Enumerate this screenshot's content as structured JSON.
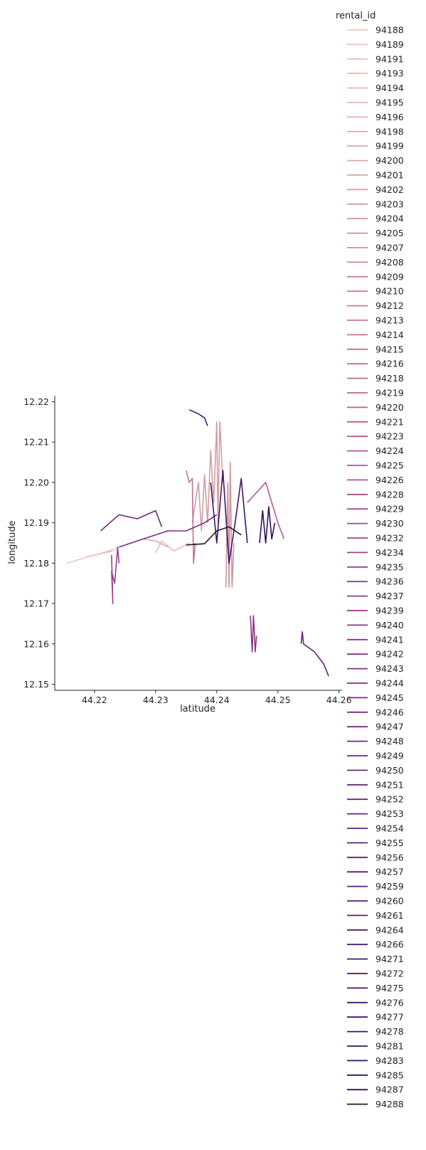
{
  "chart_data": {
    "type": "line",
    "xlabel": "latitude",
    "ylabel": "longitude",
    "xlim": [
      44.2135,
      44.2605
    ],
    "ylim": [
      12.1485,
      12.2215
    ],
    "xticks": [
      "44.22",
      "44.23",
      "44.24",
      "44.25",
      "44.26"
    ],
    "yticks": [
      "12.15",
      "12.16",
      "12.17",
      "12.18",
      "12.19",
      "12.20",
      "12.21",
      "12.22"
    ],
    "grid": false,
    "legend": {
      "title": "rental_id",
      "placement": "right"
    },
    "palette": {
      "light": "#ebc9c0",
      "mid": "#c07ba0",
      "dark": "#2d1f40"
    },
    "series": [
      {
        "name": "94188",
        "color": "#ebc9c0",
        "x": [
          44.2155,
          44.22,
          44.224
        ],
        "y": [
          12.18,
          12.182,
          12.1838
        ]
      },
      {
        "name": "94189",
        "color": "#e9c5bd",
        "x": [
          44.2185,
          44.2215,
          44.223
        ],
        "y": [
          12.1815,
          12.1825,
          12.183
        ]
      },
      {
        "name": "94191",
        "color": "#e7c1ba"
      },
      {
        "name": "94193",
        "color": "#e5bdb7",
        "x": [
          44.23,
          44.231,
          44.233,
          44.2355
        ],
        "y": [
          12.1825,
          12.1855,
          12.183,
          12.185
        ]
      },
      {
        "name": "94194",
        "color": "#e3b9b4"
      },
      {
        "name": "94195",
        "color": "#e1b5b1"
      },
      {
        "name": "94196",
        "color": "#dfb1ae"
      },
      {
        "name": "94198",
        "color": "#ddadab",
        "x": [
          44.228,
          44.23,
          44.232
        ],
        "y": [
          12.186,
          12.1855,
          12.184
        ]
      },
      {
        "name": "94199",
        "color": "#dba9a8"
      },
      {
        "name": "94200",
        "color": "#d9a5a6"
      },
      {
        "name": "94201",
        "color": "#d7a1a4"
      },
      {
        "name": "94202",
        "color": "#d59da2",
        "x": [
          44.236,
          44.2365,
          44.237,
          44.2375,
          44.238,
          44.2385,
          44.239,
          44.2395,
          44.24,
          44.2402,
          44.2405,
          44.241
        ],
        "y": [
          12.19,
          12.195,
          12.2,
          12.188,
          12.202,
          12.19,
          12.208,
          12.195,
          12.215,
          12.19,
          12.215,
          12.2
        ]
      },
      {
        "name": "94203",
        "color": "#d399a0"
      },
      {
        "name": "94204",
        "color": "#d1959e",
        "x": [
          44.2415,
          44.2418,
          44.242,
          44.2422,
          44.2425,
          44.2428
        ],
        "y": [
          12.174,
          12.2,
          12.174,
          12.205,
          12.174,
          12.185
        ]
      },
      {
        "name": "94205",
        "color": "#cf919c"
      },
      {
        "name": "94207",
        "color": "#cd8d9b"
      },
      {
        "name": "94208",
        "color": "#cb899a"
      },
      {
        "name": "94209",
        "color": "#c98599"
      },
      {
        "name": "94210",
        "color": "#c78198"
      },
      {
        "name": "94212",
        "color": "#c57d97"
      },
      {
        "name": "94213",
        "color": "#c37996"
      },
      {
        "name": "94214",
        "color": "#c17595"
      },
      {
        "name": "94215",
        "color": "#bf7194",
        "x": [
          44.235,
          44.2355,
          44.236,
          44.2362,
          44.2365
        ],
        "y": [
          12.203,
          12.2,
          12.201,
          12.18,
          12.185
        ]
      },
      {
        "name": "94216",
        "color": "#bd6d93"
      },
      {
        "name": "94218",
        "color": "#bb6993"
      },
      {
        "name": "94219",
        "color": "#b96593"
      },
      {
        "name": "94220",
        "color": "#b76193"
      },
      {
        "name": "94221",
        "color": "#b55d93",
        "x": [
          44.245,
          44.248,
          44.25,
          44.251
        ],
        "y": [
          12.195,
          12.2,
          12.19,
          12.186
        ]
      },
      {
        "name": "94223",
        "color": "#b35a93"
      },
      {
        "name": "94224",
        "color": "#b05792"
      },
      {
        "name": "94225",
        "color": "#ad5491"
      },
      {
        "name": "94226",
        "color": "#aa5190"
      },
      {
        "name": "94228",
        "color": "#a74e8f"
      },
      {
        "name": "94229",
        "color": "#a44b8e"
      },
      {
        "name": "94230",
        "color": "#a1488d"
      },
      {
        "name": "94232",
        "color": "#9e458c"
      },
      {
        "name": "94234",
        "color": "#9b428b"
      },
      {
        "name": "94235",
        "color": "#983f8a",
        "x": [
          44.2228,
          44.223,
          44.2228,
          44.2233,
          44.2238,
          44.224
        ],
        "y": [
          12.182,
          12.17,
          12.178,
          12.175,
          12.184,
          12.18
        ]
      },
      {
        "name": "94236",
        "color": "#953c89"
      },
      {
        "name": "94237",
        "color": "#923988"
      },
      {
        "name": "94239",
        "color": "#8f3787"
      },
      {
        "name": "94240",
        "color": "#8c3586",
        "x": [
          44.2455,
          44.2458,
          44.246,
          44.2463,
          44.2465
        ],
        "y": [
          12.167,
          12.158,
          12.167,
          12.158,
          12.162
        ]
      },
      {
        "name": "94241",
        "color": "#893385"
      },
      {
        "name": "94242",
        "color": "#863184"
      },
      {
        "name": "94243",
        "color": "#832f83"
      },
      {
        "name": "94244",
        "color": "#802d82"
      },
      {
        "name": "94245",
        "color": "#7d2b81",
        "x": [
          44.224,
          44.228,
          44.232,
          44.235,
          44.238,
          44.24
        ],
        "y": [
          12.184,
          12.186,
          12.188,
          12.188,
          12.19,
          12.192
        ]
      },
      {
        "name": "94246",
        "color": "#7a2a80"
      },
      {
        "name": "94247",
        "color": "#77297f"
      },
      {
        "name": "94248",
        "color": "#74287e",
        "x": [
          44.221,
          44.224,
          44.227,
          44.23,
          44.231
        ],
        "y": [
          12.188,
          12.192,
          12.191,
          12.193,
          12.189
        ]
      },
      {
        "name": "94249",
        "color": "#71277d"
      },
      {
        "name": "94250",
        "color": "#6e267c"
      },
      {
        "name": "94251",
        "color": "#6b257b"
      },
      {
        "name": "94252",
        "color": "#68247a"
      },
      {
        "name": "94253",
        "color": "#652379"
      },
      {
        "name": "94254",
        "color": "#622278",
        "x": [
          44.2538,
          44.254,
          44.2542,
          44.256,
          44.2575,
          44.2583
        ],
        "y": [
          12.16,
          12.163,
          12.16,
          12.158,
          12.155,
          12.152
        ]
      },
      {
        "name": "94255",
        "color": "#5f2177"
      },
      {
        "name": "94256",
        "color": "#5c2076"
      },
      {
        "name": "94257",
        "color": "#591f75"
      },
      {
        "name": "94259",
        "color": "#561e74"
      },
      {
        "name": "94260",
        "color": "#531d73"
      },
      {
        "name": "94261",
        "color": "#501c72"
      },
      {
        "name": "94264",
        "color": "#4d1b71"
      },
      {
        "name": "94266",
        "color": "#4a1a6f"
      },
      {
        "name": "94271",
        "color": "#47196d",
        "x": [
          44.2355,
          44.237,
          44.238,
          44.2385
        ],
        "y": [
          12.218,
          12.217,
          12.216,
          12.214
        ]
      },
      {
        "name": "94272",
        "color": "#44186b"
      },
      {
        "name": "94275",
        "color": "#411769"
      },
      {
        "name": "94276",
        "color": "#3e1667",
        "x": [
          44.239,
          44.24,
          44.241,
          44.242,
          44.243,
          44.244,
          44.245
        ],
        "y": [
          12.2,
          12.185,
          12.203,
          12.18,
          12.19,
          12.201,
          12.185
        ]
      },
      {
        "name": "94277",
        "color": "#3b1565"
      },
      {
        "name": "94278",
        "color": "#381463"
      },
      {
        "name": "94281",
        "color": "#351361"
      },
      {
        "name": "94283",
        "color": "#32125f"
      },
      {
        "name": "94285",
        "color": "#2f115d"
      },
      {
        "name": "94287",
        "color": "#2c105b",
        "x": [
          44.247,
          44.2475,
          44.248,
          44.2485,
          44.249,
          44.2495
        ],
        "y": [
          12.185,
          12.193,
          12.185,
          12.194,
          12.186,
          12.19
        ]
      },
      {
        "name": "94288",
        "color": "#29122e",
        "x": [
          44.235,
          44.238,
          44.24,
          44.242,
          44.244
        ],
        "y": [
          12.1845,
          12.1848,
          12.188,
          12.189,
          12.187
        ]
      }
    ]
  }
}
